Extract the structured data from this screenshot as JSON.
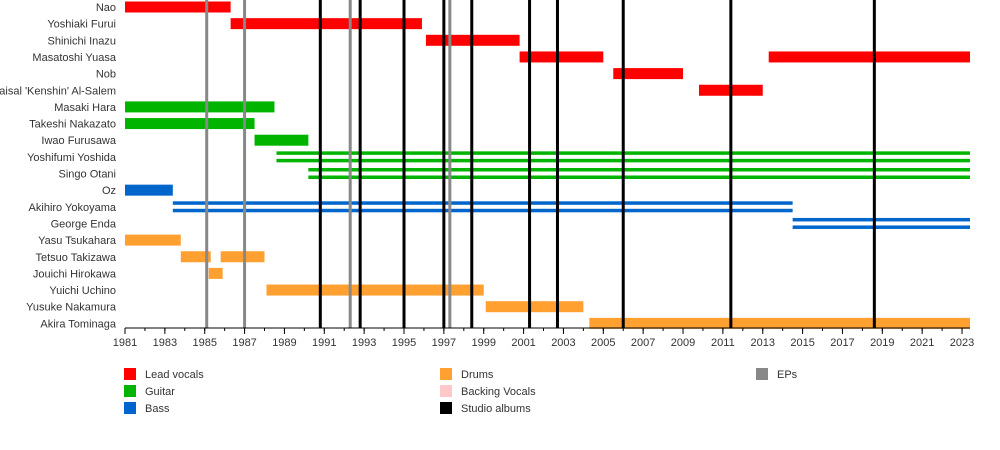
{
  "chart_data": {
    "type": "timeline",
    "title": "",
    "xlabel": "",
    "ylabel": "",
    "xlim": [
      1981,
      2023.4
    ],
    "x_ticks": [
      1981,
      1983,
      1985,
      1987,
      1989,
      1991,
      1993,
      1995,
      1997,
      1999,
      2001,
      2003,
      2005,
      2007,
      2009,
      2011,
      2013,
      2015,
      2017,
      2019,
      2021,
      2023
    ],
    "roles": [
      {
        "key": "lead_vocals",
        "name": "Lead vocals",
        "color": "#ff0000"
      },
      {
        "key": "guitar",
        "name": "Guitar",
        "color": "#00b400"
      },
      {
        "key": "bass",
        "name": "Bass",
        "color": "#0066cc"
      },
      {
        "key": "drums",
        "name": "Drums",
        "color": "#ffa030"
      },
      {
        "key": "backing_vocals",
        "name": "Backing Vocals",
        "color": "#ffc8c8"
      },
      {
        "key": "studio_albums",
        "name": "Studio albums",
        "color": "#000000"
      },
      {
        "key": "eps",
        "name": "EPs",
        "color": "#888888"
      }
    ],
    "members": [
      {
        "name": "Nao",
        "periods": [
          {
            "start": 1981,
            "end": 1986.3,
            "roles": [
              "lead_vocals"
            ]
          }
        ]
      },
      {
        "name": "Yoshiaki Furui",
        "periods": [
          {
            "start": 1986.3,
            "end": 1995.9,
            "roles": [
              "lead_vocals"
            ]
          }
        ]
      },
      {
        "name": "Shinichi Inazu",
        "periods": [
          {
            "start": 1996.1,
            "end": 2000.8,
            "roles": [
              "lead_vocals"
            ]
          }
        ]
      },
      {
        "name": "Masatoshi Yuasa",
        "periods": [
          {
            "start": 2000.8,
            "end": 2005.0,
            "roles": [
              "lead_vocals"
            ]
          },
          {
            "start": 2013.3,
            "end": 2023.4,
            "roles": [
              "lead_vocals"
            ]
          }
        ]
      },
      {
        "name": "Nob",
        "periods": [
          {
            "start": 2005.5,
            "end": 2009.0,
            "roles": [
              "lead_vocals"
            ]
          }
        ]
      },
      {
        "name": "Faisal 'Kenshin' Al-Salem",
        "periods": [
          {
            "start": 2009.8,
            "end": 2013.0,
            "roles": [
              "lead_vocals"
            ]
          }
        ]
      },
      {
        "name": "Masaki Hara",
        "periods": [
          {
            "start": 1981,
            "end": 1988.5,
            "roles": [
              "guitar"
            ]
          }
        ]
      },
      {
        "name": "Takeshi Nakazato",
        "periods": [
          {
            "start": 1981,
            "end": 1987.5,
            "roles": [
              "guitar"
            ]
          }
        ]
      },
      {
        "name": "Iwao Furusawa",
        "periods": [
          {
            "start": 1987.5,
            "end": 1990.2,
            "roles": [
              "guitar"
            ]
          }
        ]
      },
      {
        "name": "Yoshifumi Yoshida",
        "periods": [
          {
            "start": 1988.6,
            "end": 2023.4,
            "roles": [
              "guitar",
              "guitar"
            ]
          }
        ]
      },
      {
        "name": "Singo Otani",
        "periods": [
          {
            "start": 1990.2,
            "end": 2023.4,
            "roles": [
              "guitar",
              "guitar"
            ]
          }
        ]
      },
      {
        "name": "Oz",
        "periods": [
          {
            "start": 1981,
            "end": 1983.4,
            "roles": [
              "bass"
            ]
          }
        ]
      },
      {
        "name": "Akihiro Yokoyama",
        "periods": [
          {
            "start": 1983.4,
            "end": 2014.5,
            "roles": [
              "bass",
              "bass"
            ]
          }
        ]
      },
      {
        "name": "George Enda",
        "periods": [
          {
            "start": 2014.5,
            "end": 2023.4,
            "roles": [
              "bass",
              "bass"
            ]
          }
        ]
      },
      {
        "name": "Yasu Tsukahara",
        "periods": [
          {
            "start": 1981,
            "end": 1983.8,
            "roles": [
              "drums"
            ]
          }
        ]
      },
      {
        "name": "Tetsuo Takizawa",
        "periods": [
          {
            "start": 1983.8,
            "end": 1985.3,
            "roles": [
              "drums"
            ]
          },
          {
            "start": 1985.8,
            "end": 1988.0,
            "roles": [
              "drums"
            ]
          }
        ]
      },
      {
        "name": "Jouichi Hirokawa",
        "periods": [
          {
            "start": 1985.2,
            "end": 1985.9,
            "roles": [
              "drums"
            ]
          }
        ]
      },
      {
        "name": "Yuichi Uchino",
        "periods": [
          {
            "start": 1988.1,
            "end": 1999.0,
            "roles": [
              "drums"
            ]
          }
        ]
      },
      {
        "name": "Yusuke Nakamura",
        "periods": [
          {
            "start": 1999.1,
            "end": 2004.0,
            "roles": [
              "drums"
            ]
          }
        ]
      },
      {
        "name": "Akira Tominaga",
        "periods": [
          {
            "start": 2004.3,
            "end": 2023.4,
            "roles": [
              "drums"
            ]
          }
        ]
      }
    ],
    "studio_albums": [
      1990.8,
      1992.8,
      1995.0,
      1997.0,
      1998.4,
      2001.3,
      2002.7,
      2006.0,
      2011.4,
      2018.6
    ],
    "eps": [
      1985.1,
      1987.0,
      1992.3,
      1997.3
    ],
    "legend_placement": "bottom",
    "grid": false
  }
}
